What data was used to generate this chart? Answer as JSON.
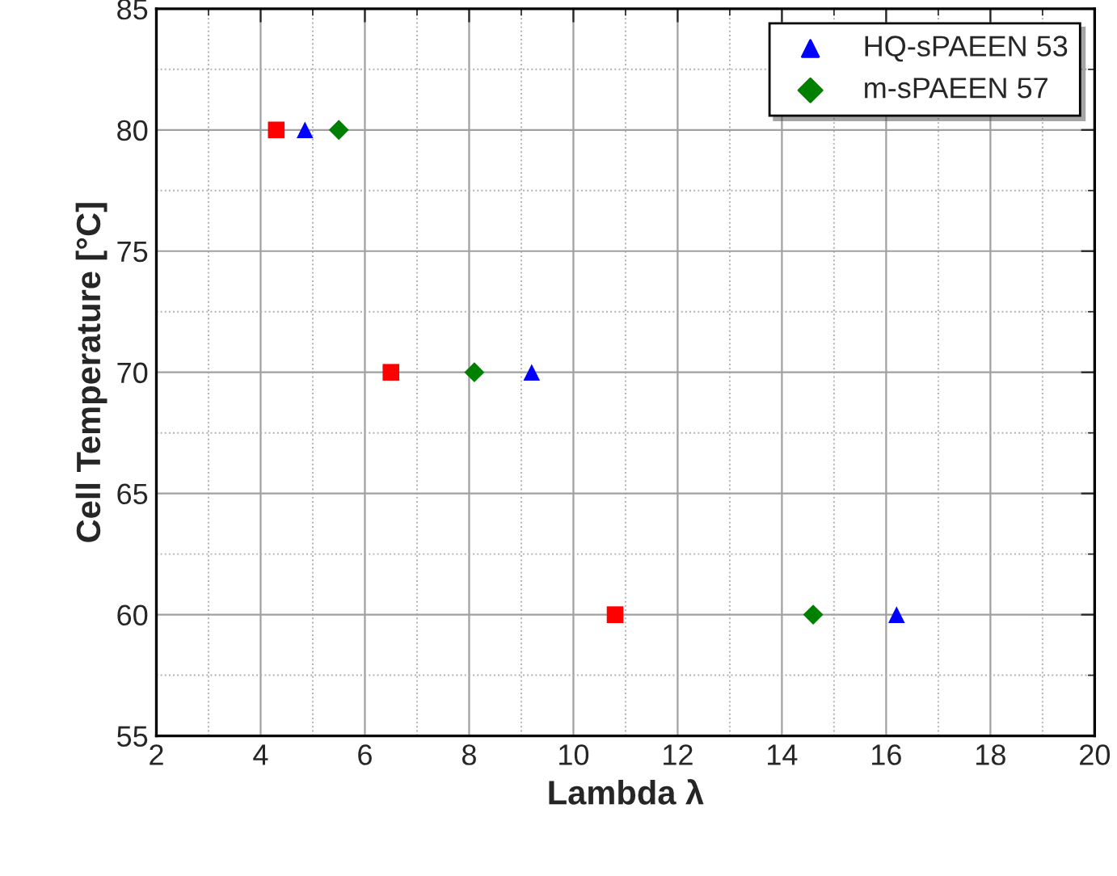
{
  "chart_data": {
    "type": "scatter",
    "xlabel": "Lambda λ",
    "ylabel": "Cell Temperature [°C]",
    "xlim": [
      2,
      20
    ],
    "xticks": [
      2,
      4,
      6,
      8,
      10,
      12,
      14,
      16,
      18,
      20
    ],
    "ylim": [
      55,
      85
    ],
    "yticks": [
      55,
      60,
      65,
      70,
      75,
      80,
      85
    ],
    "grid": true,
    "legend": "top right",
    "series": [
      {
        "color": "#ff0000",
        "marker": "square",
        "x": [
          4.3,
          6.5,
          10.8
        ],
        "values": [
          80,
          70,
          60
        ]
      },
      {
        "name": "HQ-sPAEEN 53",
        "color": "#0000ff",
        "marker": "triangle",
        "x": [
          4.85,
          9.2,
          16.2
        ],
        "values": [
          80,
          70,
          60
        ]
      },
      {
        "name": "m-sPAEEN 57",
        "color": "#008000",
        "marker": "diamond",
        "x": [
          5.5,
          8.1,
          14.6
        ],
        "values": [
          80,
          70,
          60
        ]
      }
    ]
  }
}
